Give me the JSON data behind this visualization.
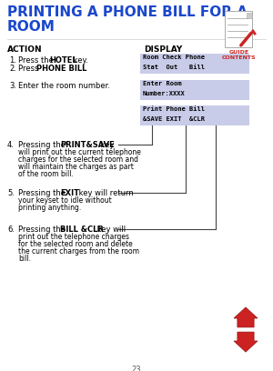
{
  "title_line1": "PRINTING A PHONE BILL FOR A",
  "title_line2": "ROOM",
  "title_color": "#1a47cc",
  "bg_color": "#ffffff",
  "action_label": "ACTION",
  "display_label": "DISPLAY",
  "display_box_color": "#c8cce8",
  "guide_color": "#cc2222",
  "box1_lines": [
    "Room Check Phone",
    "Stat  Out   Bill"
  ],
  "box2_lines": [
    "Enter Room",
    "Number:XXXX"
  ],
  "box3_lines": [
    "Print Phone Bill",
    "&SAVE EXIT  &CLR"
  ],
  "page_num": "23",
  "lc": "#444444",
  "arrow_color": "#cc2222"
}
